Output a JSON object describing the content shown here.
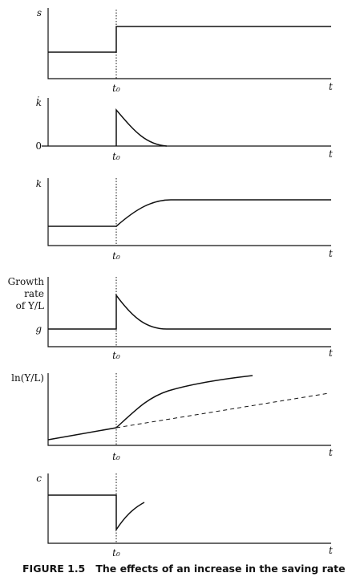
{
  "chart_data": [
    {
      "id": "saving-rate",
      "type": "line",
      "ylabel": "s",
      "xlabel": "t",
      "t0_label": "t₀",
      "description_points": {
        "before": 0.3,
        "after": 0.85
      }
    },
    {
      "id": "k-dot",
      "type": "line",
      "ylabel": "k̇",
      "zero_label": "0",
      "xlabel": "t",
      "t0_label": "t₀"
    },
    {
      "id": "k",
      "type": "line",
      "ylabel": "k",
      "xlabel": "t",
      "t0_label": "t₀"
    },
    {
      "id": "growth-rate",
      "type": "line",
      "ylabel_lines": [
        "Growth",
        "rate",
        "of Y/L"
      ],
      "g_label": "g",
      "xlabel": "t",
      "t0_label": "t₀"
    },
    {
      "id": "ln-output",
      "type": "line",
      "ylabel": "ln(Y/L)",
      "xlabel": "t",
      "t0_label": "t₀"
    },
    {
      "id": "consumption",
      "type": "line",
      "ylabel": "c",
      "xlabel": "t",
      "t0_label": "t₀"
    }
  ],
  "caption": "FIGURE 1.5   The effects of an increase in the saving rate"
}
